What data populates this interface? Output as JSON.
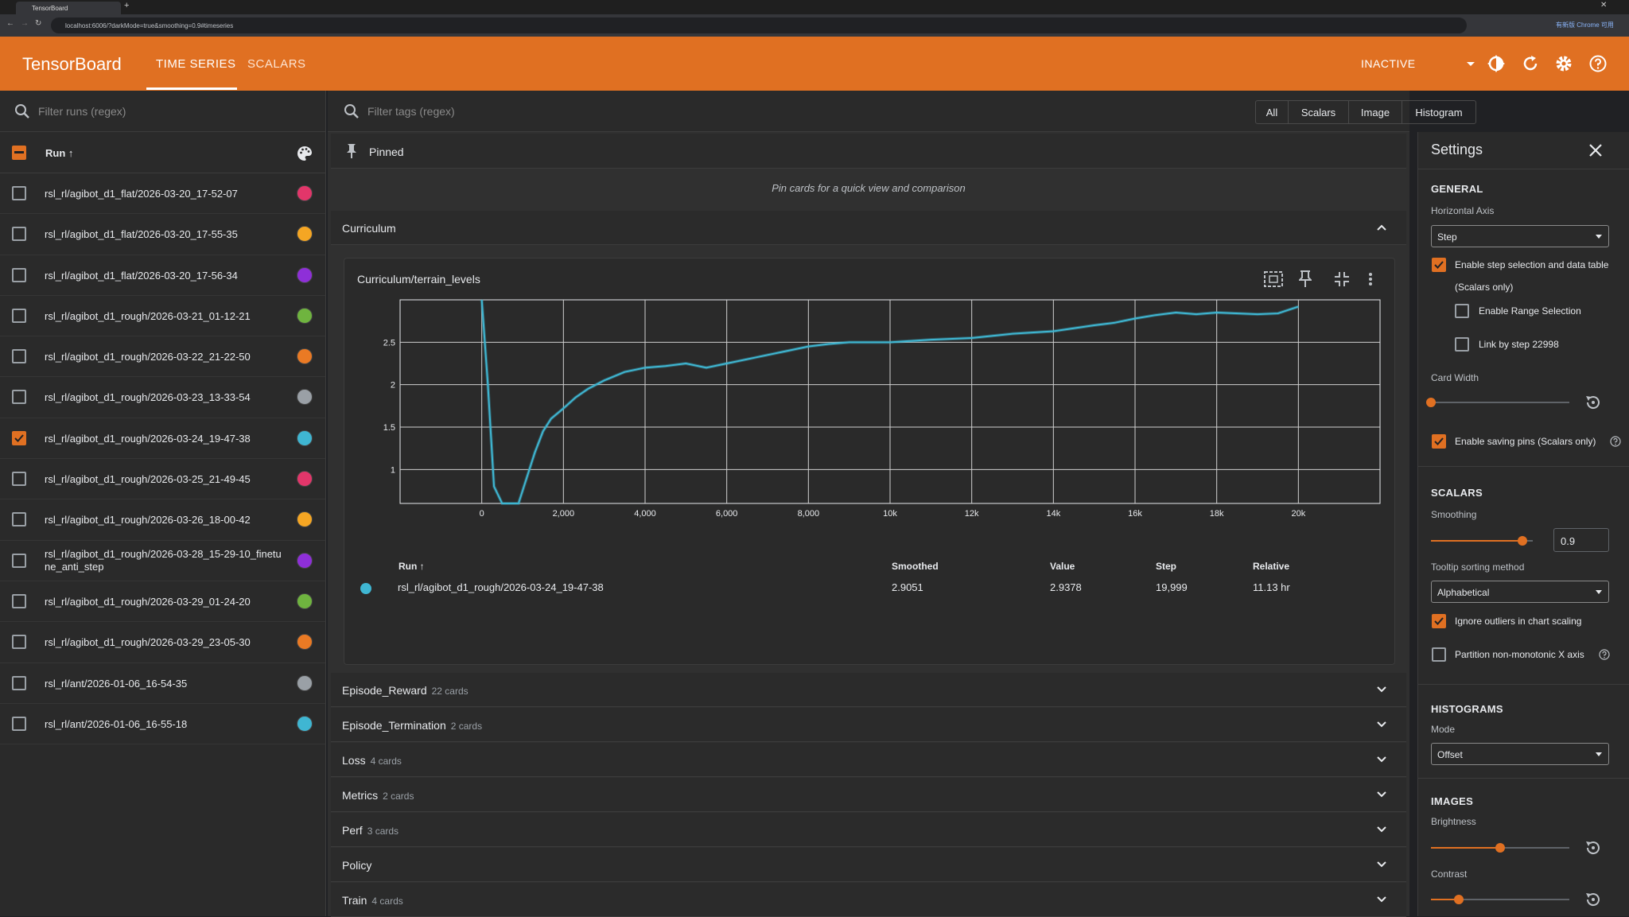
{
  "browser": {
    "tab_title": "TensorBoard",
    "url": "localhost:6006/?darkMode=true&smoothing=0.9#timeseries",
    "ext_label": "有新版 Chrome 可用"
  },
  "header": {
    "brand": "TensorBoard",
    "tabs": [
      "TIME SERIES",
      "SCALARS"
    ],
    "status": "INACTIVE"
  },
  "runs_pane": {
    "filter_placeholder": "Filter runs (regex)",
    "header": "Run ↑",
    "runs": [
      {
        "name": "rsl_rl/agibot_d1_flat/2026-03-20_17-52-07",
        "color": "#e2366a",
        "checked": false
      },
      {
        "name": "rsl_rl/agibot_d1_flat/2026-03-20_17-55-35",
        "color": "#f5a623",
        "checked": false
      },
      {
        "name": "rsl_rl/agibot_d1_flat/2026-03-20_17-56-34",
        "color": "#8e2fd8",
        "checked": false
      },
      {
        "name": "rsl_rl/agibot_d1_rough/2026-03-21_01-12-21",
        "color": "#6fb43f",
        "checked": false
      },
      {
        "name": "rsl_rl/agibot_d1_rough/2026-03-22_21-22-50",
        "color": "#ea7a24",
        "checked": false
      },
      {
        "name": "rsl_rl/agibot_d1_rough/2026-03-23_13-33-54",
        "color": "#9aa0a6",
        "checked": false
      },
      {
        "name": "rsl_rl/agibot_d1_rough/2026-03-24_19-47-38",
        "color": "#3fb6d2",
        "checked": true
      },
      {
        "name": "rsl_rl/agibot_d1_rough/2026-03-25_21-49-45",
        "color": "#e2366a",
        "checked": false
      },
      {
        "name": "rsl_rl/agibot_d1_rough/2026-03-26_18-00-42",
        "color": "#f5a623",
        "checked": false
      },
      {
        "name": "rsl_rl/agibot_d1_rough/2026-03-28_15-29-10_finetune_anti_step",
        "color": "#8e2fd8",
        "checked": false
      },
      {
        "name": "rsl_rl/agibot_d1_rough/2026-03-29_01-24-20",
        "color": "#6fb43f",
        "checked": false
      },
      {
        "name": "rsl_rl/agibot_d1_rough/2026-03-29_23-05-30",
        "color": "#ea7a24",
        "checked": false
      },
      {
        "name": "rsl_rl/ant/2026-01-06_16-54-35",
        "color": "#9aa0a6",
        "checked": false
      },
      {
        "name": "rsl_rl/ant/2026-01-06_16-55-18",
        "color": "#3fb6d2",
        "checked": false
      }
    ]
  },
  "tag_filter": {
    "placeholder": "Filter tags (regex)",
    "types": [
      "All",
      "Scalars",
      "Image",
      "Histogram"
    ],
    "settings_label": "Settings"
  },
  "pinned": {
    "title": "Pinned",
    "empty_text": "Pin cards for a quick view and comparison"
  },
  "curriculum": {
    "title": "Curriculum",
    "card_title": "Curriculum/terrain_levels",
    "table": {
      "headers": [
        "Run ↑",
        "Smoothed",
        "Value",
        "Step",
        "Relative"
      ],
      "row": [
        "rsl_rl/agibot_d1_rough/2026-03-24_19-47-38",
        "2.9051",
        "2.9378",
        "19,999",
        "11.13 hr"
      ]
    }
  },
  "sections": [
    {
      "title": "Episode_Reward",
      "count": "22 cards"
    },
    {
      "title": "Episode_Termination",
      "count": "2 cards"
    },
    {
      "title": "Loss",
      "count": "4 cards"
    },
    {
      "title": "Metrics",
      "count": "2 cards"
    },
    {
      "title": "Perf",
      "count": "3 cards"
    },
    {
      "title": "Policy",
      "count": ""
    },
    {
      "title": "Train",
      "count": "4 cards"
    }
  ],
  "settings": {
    "title": "Settings",
    "general": "GENERAL",
    "horizontal_axis_label": "Horizontal Axis",
    "horizontal_axis_value": "Step",
    "step_selection": "Enable step selection and data table",
    "scalars_only": "(Scalars only)",
    "range_selection": "Enable Range Selection",
    "link_by_step": "Link by step 22998",
    "card_width": "Card Width",
    "card_width_level": 0.0,
    "saving_pins": "Enable saving pins (Scalars only)",
    "scalars": "SCALARS",
    "smoothing_label": "Smoothing",
    "smoothing_value": "0.9",
    "tooltip_label": "Tooltip sorting method",
    "tooltip_value": "Alphabetical",
    "ignore_outliers": "Ignore outliers in chart scaling",
    "partition": "Partition non-monotonic X axis",
    "histograms": "HISTOGRAMS",
    "mode_label": "Mode",
    "mode_value": "Offset",
    "images": "IMAGES",
    "brightness_label": "Brightness",
    "brightness_level": 0.5,
    "contrast_label": "Contrast",
    "contrast_level": 0.2
  },
  "chart_data": {
    "type": "line",
    "title": "Curriculum/terrain_levels",
    "xlabel": "",
    "ylabel": "",
    "xlim": [
      -2000,
      22000
    ],
    "ylim": [
      0.6,
      3.0
    ],
    "x_ticks": [
      0,
      2000,
      4000,
      6000,
      8000,
      10000,
      12000,
      14000,
      16000,
      18000,
      20000
    ],
    "x_tick_labels": [
      "0",
      "2,000",
      "4,000",
      "6,000",
      "8,000",
      "10k",
      "12k",
      "14k",
      "16k",
      "18k",
      "20k"
    ],
    "y_ticks": [
      1,
      1.5,
      2,
      2.5
    ],
    "y_tick_labels": [
      "1",
      "1.5",
      "2",
      "2.5"
    ],
    "grid": true,
    "series": [
      {
        "color": "#3fb6d2",
        "x": [
          0,
          150,
          300,
          500,
          700,
          900,
          1100,
          1300,
          1500,
          1700,
          2000,
          2300,
          2600,
          3000,
          3500,
          4000,
          4500,
          5000,
          5500,
          6000,
          6500,
          7000,
          7500,
          8000,
          8500,
          9000,
          10000,
          11000,
          12000,
          13000,
          14000,
          15000,
          15500,
          16000,
          16500,
          17000,
          17500,
          18000,
          19000,
          19500,
          20000
        ],
        "y": [
          3.0,
          2.0,
          0.8,
          0.6,
          0.6,
          0.6,
          0.9,
          1.2,
          1.45,
          1.6,
          1.72,
          1.85,
          1.95,
          2.05,
          2.15,
          2.2,
          2.22,
          2.25,
          2.2,
          2.25,
          2.3,
          2.35,
          2.4,
          2.45,
          2.48,
          2.5,
          2.5,
          2.53,
          2.55,
          2.6,
          2.63,
          2.7,
          2.73,
          2.78,
          2.82,
          2.85,
          2.83,
          2.85,
          2.83,
          2.84,
          2.92
        ]
      }
    ]
  }
}
